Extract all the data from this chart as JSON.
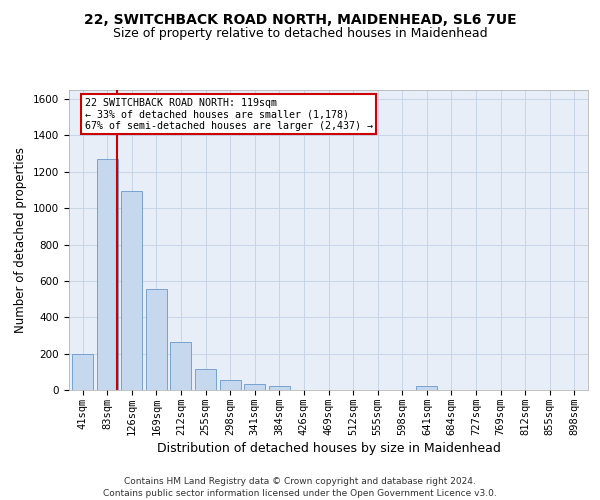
{
  "title": "22, SWITCHBACK ROAD NORTH, MAIDENHEAD, SL6 7UE",
  "subtitle": "Size of property relative to detached houses in Maidenhead",
  "xlabel": "Distribution of detached houses by size in Maidenhead",
  "ylabel": "Number of detached properties",
  "categories": [
    "41sqm",
    "83sqm",
    "126sqm",
    "169sqm",
    "212sqm",
    "255sqm",
    "298sqm",
    "341sqm",
    "384sqm",
    "426sqm",
    "469sqm",
    "512sqm",
    "555sqm",
    "598sqm",
    "641sqm",
    "684sqm",
    "727sqm",
    "769sqm",
    "812sqm",
    "855sqm",
    "898sqm"
  ],
  "values": [
    197,
    1270,
    1095,
    553,
    265,
    118,
    57,
    32,
    20,
    0,
    0,
    0,
    0,
    0,
    20,
    0,
    0,
    0,
    0,
    0,
    0
  ],
  "bar_color": "#c5d8ee",
  "bar_edge_color": "#6699cc",
  "vline_color": "#cc0000",
  "vline_pos": 1.42,
  "annotation_text": "22 SWITCHBACK ROAD NORTH: 119sqm\n← 33% of detached houses are smaller (1,178)\n67% of semi-detached houses are larger (2,437) →",
  "annotation_box_color": "#ffffff",
  "annotation_box_edge": "#cc0000",
  "ylim": [
    0,
    1650
  ],
  "yticks": [
    0,
    200,
    400,
    600,
    800,
    1000,
    1200,
    1400,
    1600
  ],
  "grid_color": "#c8d4e8",
  "bg_color": "#e8eef8",
  "footer": "Contains HM Land Registry data © Crown copyright and database right 2024.\nContains public sector information licensed under the Open Government Licence v3.0.",
  "title_fontsize": 10,
  "subtitle_fontsize": 9,
  "xlabel_fontsize": 9,
  "ylabel_fontsize": 8.5,
  "tick_fontsize": 7.5,
  "footer_fontsize": 6.5
}
